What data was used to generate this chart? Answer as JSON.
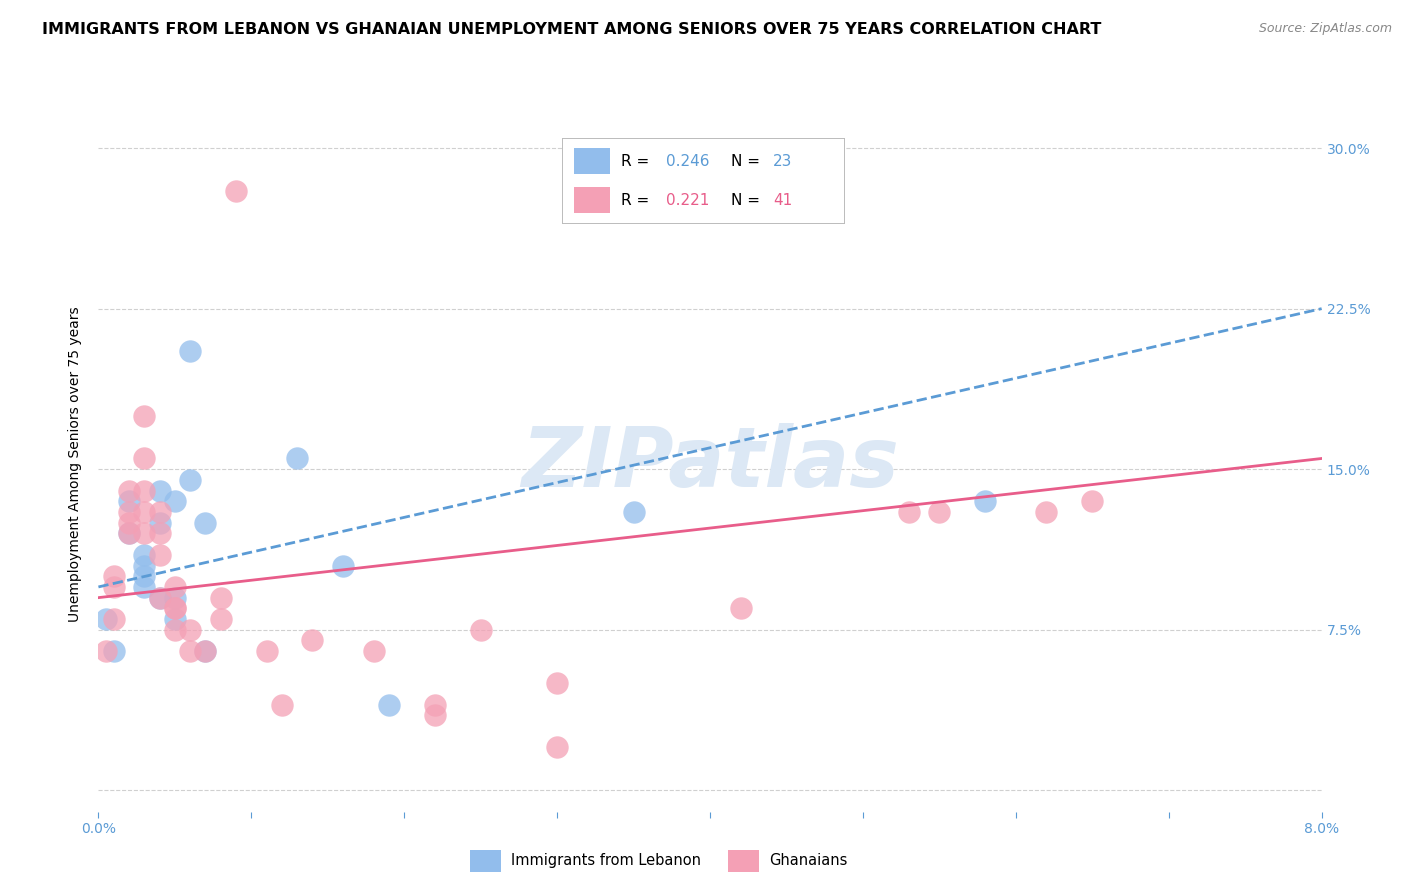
{
  "title": "IMMIGRANTS FROM LEBANON VS GHANAIAN UNEMPLOYMENT AMONG SENIORS OVER 75 YEARS CORRELATION CHART",
  "source": "Source: ZipAtlas.com",
  "ylabel": "Unemployment Among Seniors over 75 years",
  "legend_label1": "Immigrants from Lebanon",
  "legend_label2": "Ghanaians",
  "R1": 0.246,
  "N1": 23,
  "R2": 0.221,
  "N2": 41,
  "color1": "#92BDEC",
  "color2": "#F4A0B5",
  "trendline1_color": "#5B9BD5",
  "trendline2_color": "#E85D8A",
  "xmin": 0.0,
  "xmax": 0.08,
  "ymin": -0.01,
  "ymax": 0.315,
  "yticks": [
    0.0,
    0.075,
    0.15,
    0.225,
    0.3
  ],
  "ytick_labels": [
    "",
    "7.5%",
    "15.0%",
    "22.5%",
    "30.0%"
  ],
  "xticks": [
    0.0,
    0.01,
    0.02,
    0.03,
    0.04,
    0.05,
    0.06,
    0.07,
    0.08
  ],
  "xtick_labels": [
    "0.0%",
    "",
    "",
    "",
    "",
    "",
    "",
    "",
    "8.0%"
  ],
  "watermark": "ZIPatlas",
  "scatter1_x": [
    0.0005,
    0.001,
    0.002,
    0.002,
    0.003,
    0.003,
    0.003,
    0.003,
    0.004,
    0.004,
    0.004,
    0.005,
    0.005,
    0.005,
    0.006,
    0.006,
    0.007,
    0.007,
    0.013,
    0.016,
    0.019,
    0.035,
    0.058
  ],
  "scatter1_y": [
    0.08,
    0.065,
    0.135,
    0.12,
    0.11,
    0.105,
    0.1,
    0.095,
    0.09,
    0.125,
    0.14,
    0.09,
    0.135,
    0.08,
    0.205,
    0.145,
    0.125,
    0.065,
    0.155,
    0.105,
    0.04,
    0.13,
    0.135
  ],
  "scatter2_x": [
    0.0005,
    0.001,
    0.001,
    0.001,
    0.002,
    0.002,
    0.002,
    0.002,
    0.003,
    0.003,
    0.003,
    0.003,
    0.003,
    0.004,
    0.004,
    0.004,
    0.004,
    0.005,
    0.005,
    0.005,
    0.005,
    0.006,
    0.006,
    0.007,
    0.008,
    0.008,
    0.009,
    0.011,
    0.012,
    0.014,
    0.018,
    0.022,
    0.022,
    0.025,
    0.03,
    0.03,
    0.042,
    0.053,
    0.055,
    0.062,
    0.065
  ],
  "scatter2_y": [
    0.065,
    0.1,
    0.095,
    0.08,
    0.13,
    0.125,
    0.14,
    0.12,
    0.175,
    0.155,
    0.14,
    0.13,
    0.12,
    0.13,
    0.12,
    0.11,
    0.09,
    0.095,
    0.085,
    0.085,
    0.075,
    0.075,
    0.065,
    0.065,
    0.09,
    0.08,
    0.28,
    0.065,
    0.04,
    0.07,
    0.065,
    0.04,
    0.035,
    0.075,
    0.05,
    0.02,
    0.085,
    0.13,
    0.13,
    0.13,
    0.135
  ],
  "trendline1_x": [
    0.0,
    0.08
  ],
  "trendline1_y": [
    0.095,
    0.225
  ],
  "trendline2_x": [
    0.0,
    0.08
  ],
  "trendline2_y": [
    0.09,
    0.155
  ],
  "background_color": "#ffffff",
  "grid_color": "#d0d0d0",
  "title_fontsize": 11.5,
  "axis_label_fontsize": 10,
  "tick_fontsize": 10,
  "tick_color": "#5B9BD5",
  "watermark_color": "#dce8f5",
  "watermark_fontsize": 60
}
